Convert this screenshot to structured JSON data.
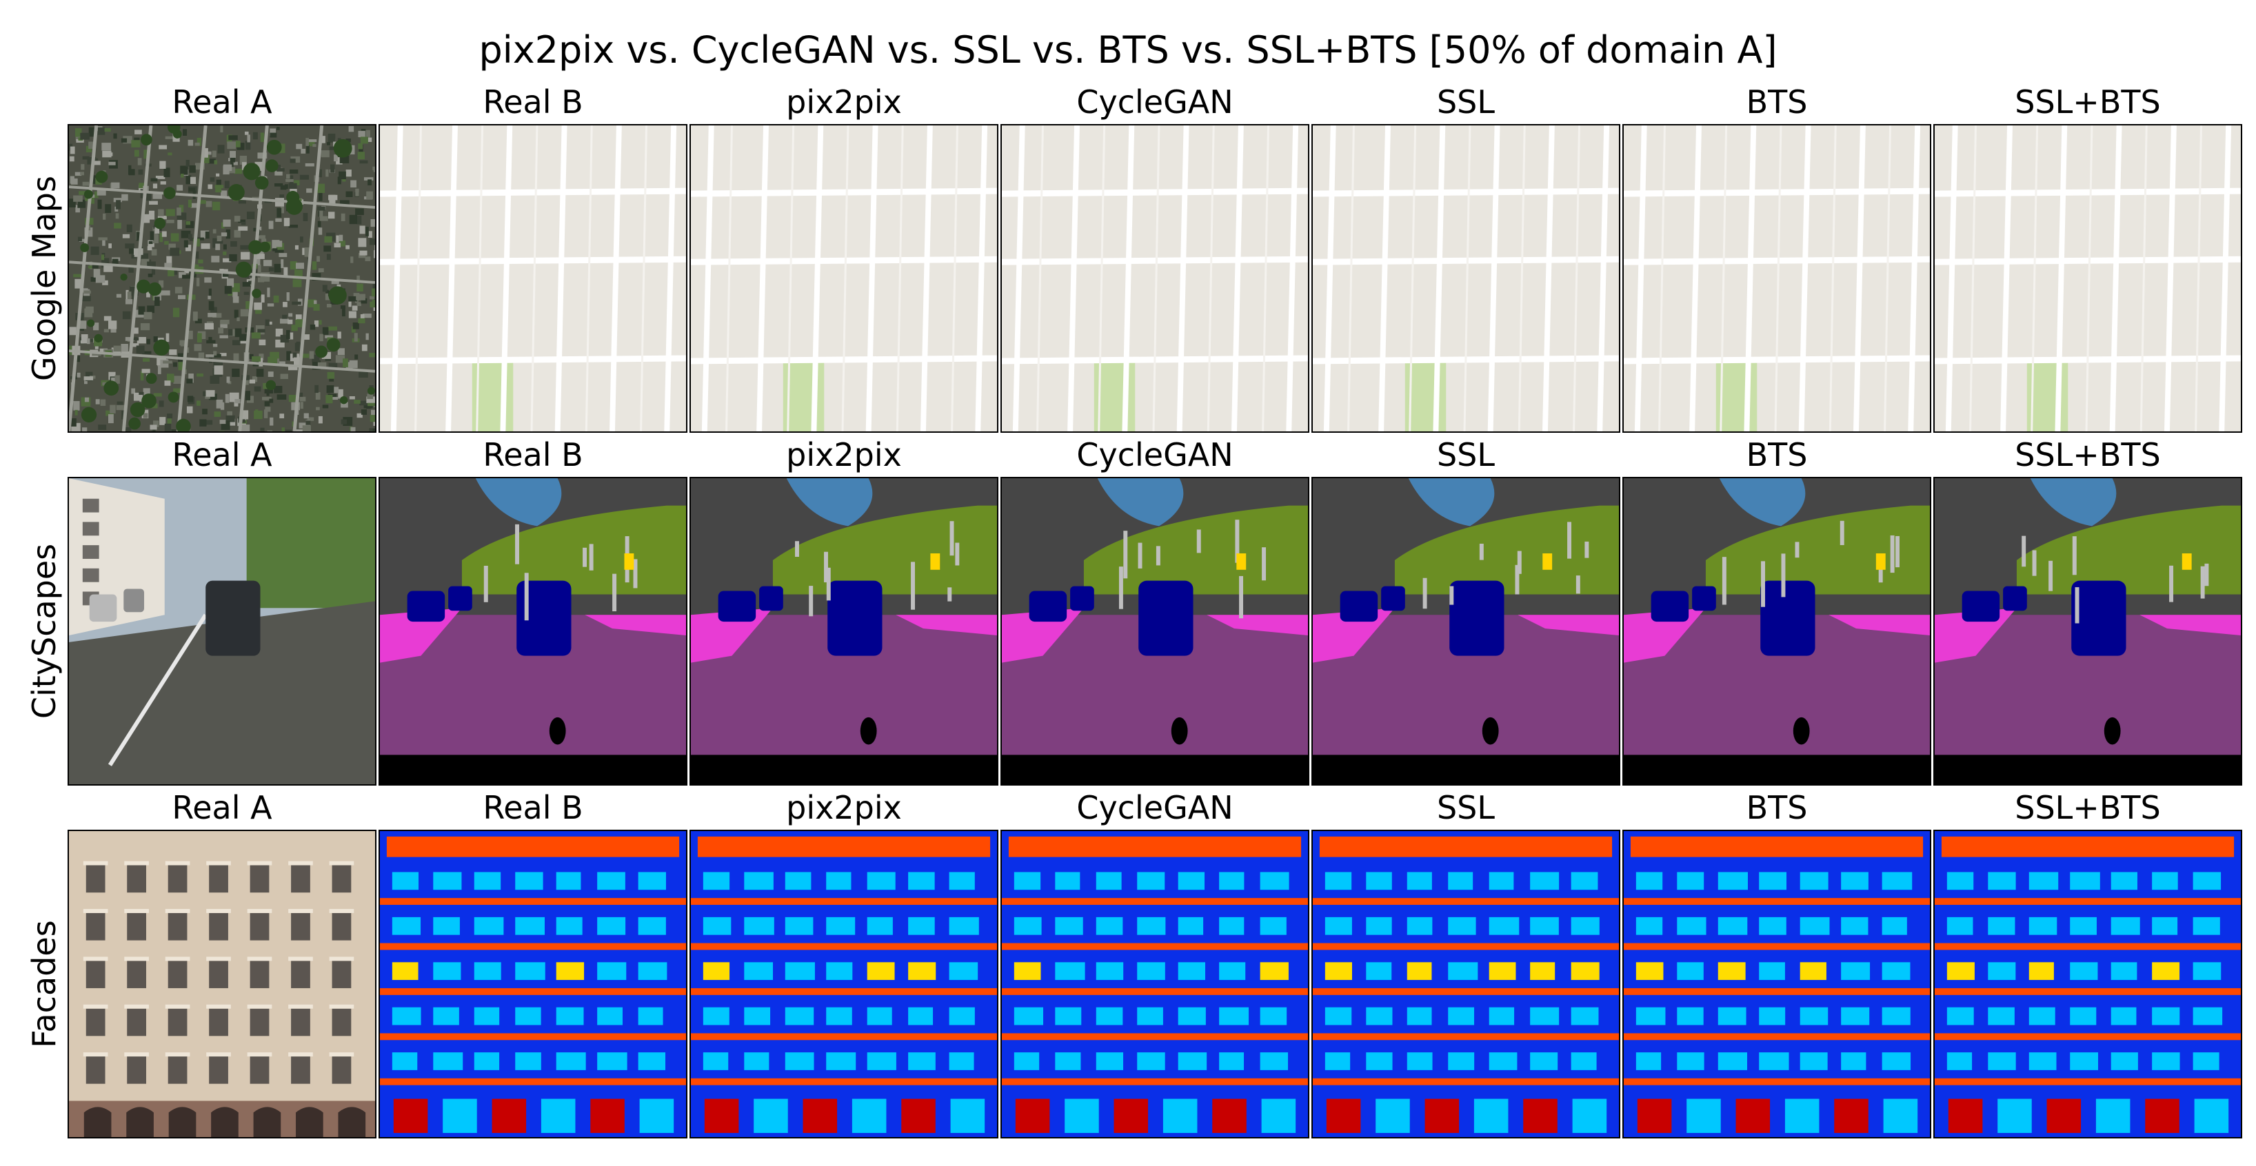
{
  "figure": {
    "title": "pix2pix vs. CycleGAN vs. SSL vs. BTS vs. SSL+BTS [50% of domain A]"
  },
  "columns": [
    "Real A",
    "Real B",
    "pix2pix",
    "CycleGAN",
    "SSL",
    "BTS",
    "SSL+BTS"
  ],
  "rows": [
    {
      "label": "Google Maps",
      "panels": [
        {
          "column": "Real A",
          "icon": "aerial-photo-image"
        },
        {
          "column": "Real B",
          "icon": "street-map-image"
        },
        {
          "column": "pix2pix",
          "icon": "street-map-image"
        },
        {
          "column": "CycleGAN",
          "icon": "street-map-image"
        },
        {
          "column": "SSL",
          "icon": "street-map-image"
        },
        {
          "column": "BTS",
          "icon": "street-map-image"
        },
        {
          "column": "SSL+BTS",
          "icon": "street-map-image"
        }
      ]
    },
    {
      "label": "CityScapes",
      "panels": [
        {
          "column": "Real A",
          "icon": "street-photo-image"
        },
        {
          "column": "Real B",
          "icon": "segmentation-map-image"
        },
        {
          "column": "pix2pix",
          "icon": "segmentation-map-image"
        },
        {
          "column": "CycleGAN",
          "icon": "segmentation-map-image"
        },
        {
          "column": "SSL",
          "icon": "segmentation-map-image"
        },
        {
          "column": "BTS",
          "icon": "segmentation-map-image"
        },
        {
          "column": "SSL+BTS",
          "icon": "segmentation-map-image"
        }
      ]
    },
    {
      "label": "Facades",
      "panels": [
        {
          "column": "Real A",
          "icon": "building-facade-photo-image"
        },
        {
          "column": "Real B",
          "icon": "facade-label-map-image"
        },
        {
          "column": "pix2pix",
          "icon": "facade-label-map-image"
        },
        {
          "column": "CycleGAN",
          "icon": "facade-label-map-image"
        },
        {
          "column": "SSL",
          "icon": "facade-label-map-image"
        },
        {
          "column": "BTS",
          "icon": "facade-label-map-image"
        },
        {
          "column": "SSL+BTS",
          "icon": "facade-label-map-image"
        }
      ]
    }
  ],
  "colors": {
    "map_background": "#e9e6df",
    "map_road": "#ffffff",
    "map_park": "#c9dfa8",
    "seg_road": "#7f3f7f",
    "seg_sidewalk": "#e83cd4",
    "seg_car": "#00008e",
    "seg_sky": "#4682b4",
    "seg_vegetation": "#6b8e23",
    "seg_building": "#464646",
    "facade_background": "#0a2fe8",
    "facade_window": "#00c8ff",
    "facade_balcony": "#ff4a00",
    "facade_door": "#c80000",
    "facade_shop": "#ffdd00"
  }
}
